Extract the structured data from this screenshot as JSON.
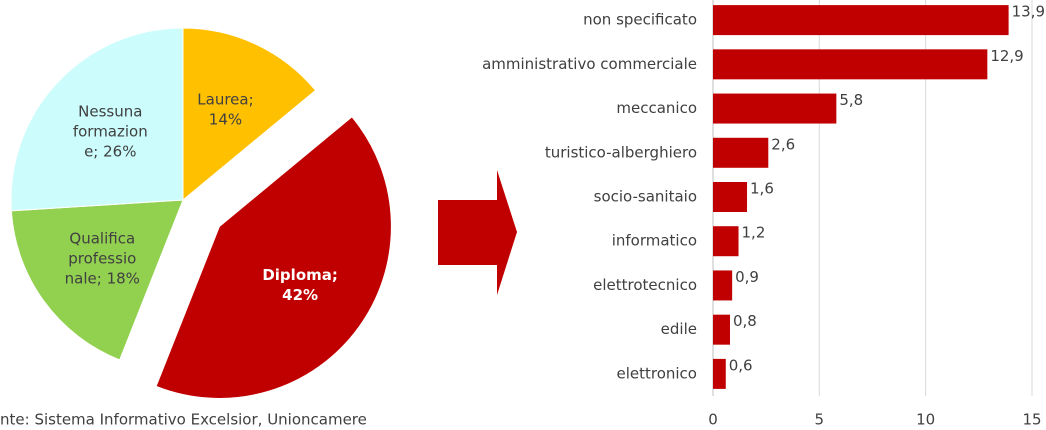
{
  "chart_data": [
    {
      "type": "pie",
      "labels": [
        "Laurea; 14%",
        "Diploma; 42%",
        "Qualifica professionale; 18%",
        "Nessuna formazione; 26%"
      ],
      "values": [
        14,
        42,
        18,
        26
      ],
      "colors": [
        "#ffc000",
        "#c00000",
        "#92d050",
        "#ccfcfc"
      ],
      "exploded": [
        false,
        true,
        false,
        false
      ],
      "source": "nte: Sistema Informativo Excelsior, Unioncamere"
    },
    {
      "type": "hbar",
      "categories": [
        "non specificato",
        "amministrativo commerciale",
        "meccanico",
        "turistico-alberghiero",
        "socio-sanitaio",
        "informatico",
        "elettrotecnico",
        "edile",
        "elettronico"
      ],
      "values": [
        13.9,
        12.9,
        5.8,
        2.6,
        1.6,
        1.2,
        0.9,
        0.8,
        0.6
      ],
      "value_labels": [
        "13,9",
        "12,9",
        "5,8",
        "2,6",
        "1,6",
        "1,2",
        "0,9",
        "0,8",
        "0,6"
      ],
      "color": "#c00000",
      "xlim": [
        0,
        15
      ],
      "xticks": [
        0,
        5,
        10,
        15
      ],
      "grid": true
    }
  ]
}
